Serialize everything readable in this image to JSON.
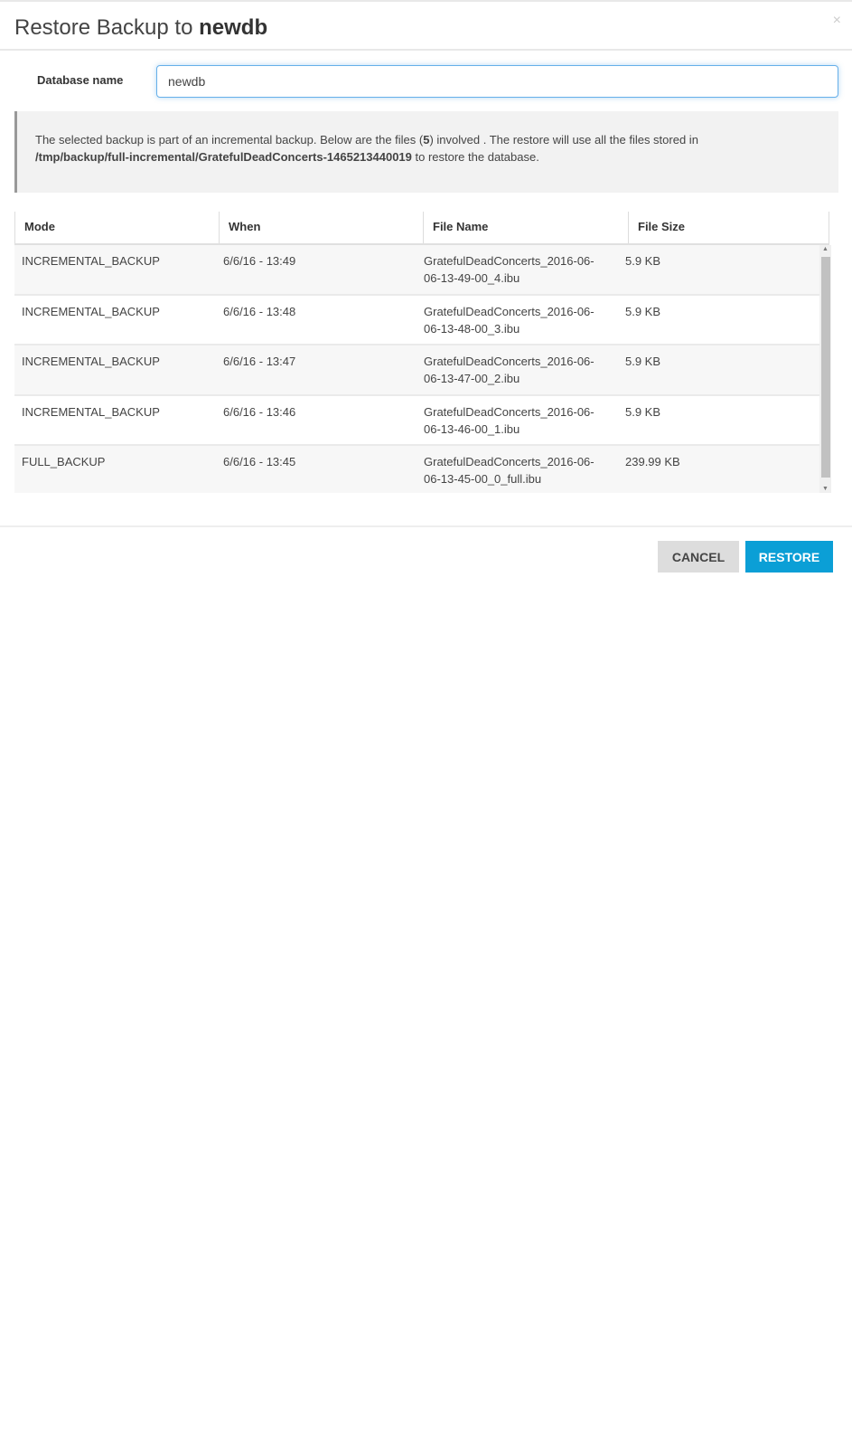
{
  "dialog": {
    "title_prefix": "Restore Backup to",
    "title_db": "newdb",
    "close": "×"
  },
  "form": {
    "db_label": "Database name",
    "db_value": "newdb"
  },
  "info": {
    "text1": "The selected backup is part of an incremental backup. Below are the files (",
    "count": "5",
    "text2": ") involved . The restore will use all the files stored in",
    "path": "/tmp/backup/full-incremental/GratefulDeadConcerts-1465213440019",
    "text3": " to restore the database."
  },
  "table": {
    "headers": [
      "Mode",
      "When",
      "File Name",
      "File Size"
    ],
    "rows": [
      {
        "mode": "INCREMENTAL_BACKUP",
        "when": "6/6/16 - 13:49",
        "file1": "GratefulDeadConcerts_2016-06-",
        "file2": "06-13-49-00_4.ibu",
        "size": "5.9 KB"
      },
      {
        "mode": "INCREMENTAL_BACKUP",
        "when": "6/6/16 - 13:48",
        "file1": "GratefulDeadConcerts_2016-06-",
        "file2": "06-13-48-00_3.ibu",
        "size": "5.9 KB"
      },
      {
        "mode": "INCREMENTAL_BACKUP",
        "when": "6/6/16 - 13:47",
        "file1": "GratefulDeadConcerts_2016-06-",
        "file2": "06-13-47-00_2.ibu",
        "size": "5.9 KB"
      },
      {
        "mode": "INCREMENTAL_BACKUP",
        "when": "6/6/16 - 13:46",
        "file1": "GratefulDeadConcerts_2016-06-",
        "file2": "06-13-46-00_1.ibu",
        "size": "5.9 KB"
      },
      {
        "mode": "FULL_BACKUP",
        "when": "6/6/16 - 13:45",
        "file1": "GratefulDeadConcerts_2016-06-",
        "file2": "06-13-45-00_0_full.ibu",
        "size": "239.99 KB"
      }
    ]
  },
  "footer": {
    "cancel": "CANCEL",
    "restore": "RESTORE"
  },
  "colors": {
    "primary": "#0b9fd6",
    "cancel_bg": "#dddddd"
  }
}
